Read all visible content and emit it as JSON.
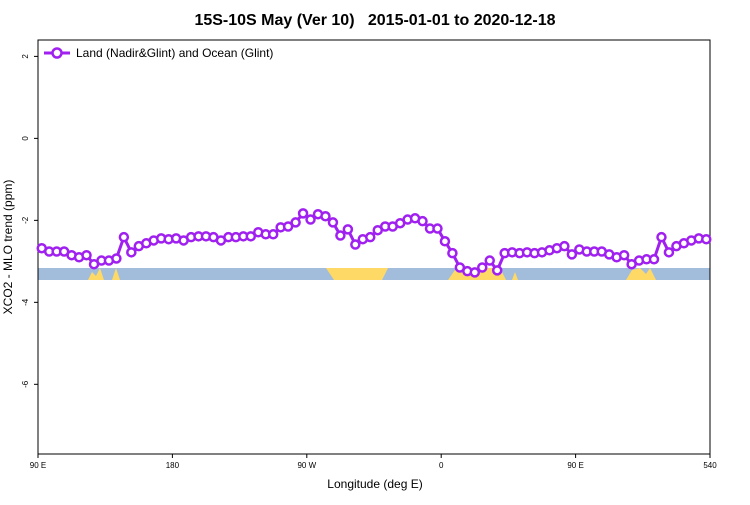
{
  "chart_data": {
    "type": "line",
    "title": "15S-10S May (Ver 10)   2015-01-01 to 2020-12-18",
    "xlabel": "Longitude (deg E)",
    "ylabel": "XCO2 - MLO trend (ppm)",
    "xlim": [
      90,
      540
    ],
    "ylim": [
      -7.7,
      2.4
    ],
    "xticks": [
      {
        "value": 90,
        "label": "90 E"
      },
      180,
      {
        "value": 270,
        "label": "90 W"
      },
      {
        "value": 360,
        "label": "0"
      },
      {
        "value": 450,
        "label": "90 E"
      },
      540
    ],
    "yticks": [
      2,
      0,
      -2,
      -4,
      -6
    ],
    "legend": "top-left",
    "x": [
      92.5,
      97.5,
      102.5,
      107.5,
      112.5,
      117.5,
      122.5,
      127.5,
      132.5,
      137.5,
      142.5,
      147.5,
      152.5,
      157.5,
      162.5,
      167.5,
      172.5,
      177.5,
      182.5,
      187.5,
      192.5,
      197.5,
      202.5,
      207.5,
      212.5,
      217.5,
      222.5,
      227.5,
      232.5,
      237.5,
      242.5,
      247.5,
      252.5,
      257.5,
      262.5,
      267.5,
      272.5,
      277.5,
      282.5,
      287.5,
      292.5,
      297.5,
      302.5,
      307.5,
      312.5,
      317.5,
      322.5,
      327.5,
      332.5,
      337.5,
      342.5,
      347.5,
      352.5,
      357.5,
      362.5,
      367.5,
      372.5,
      377.5,
      382.5,
      387.5,
      392.5,
      397.5,
      402.5,
      407.5,
      412.5,
      417.5,
      422.5,
      427.5,
      432.5,
      437.5,
      442.5,
      447.5,
      452.5,
      457.5,
      462.5,
      467.5,
      472.5,
      477.5,
      482.5,
      487.5,
      492.5,
      497.5,
      502.5,
      507.5,
      512.5,
      517.5,
      522.5,
      527.5,
      532.5,
      537.5
    ],
    "series": [
      {
        "name": "Land (Nadir&Glint) and Ocean (Glint)",
        "color": "#a020f0",
        "values": [
          -2.68,
          -2.76,
          -2.76,
          -2.76,
          -2.85,
          -2.9,
          -2.85,
          -3.07,
          -2.98,
          -2.98,
          -2.93,
          -2.41,
          -2.78,
          -2.63,
          -2.56,
          -2.49,
          -2.44,
          -2.46,
          -2.44,
          -2.49,
          -2.41,
          -2.39,
          -2.39,
          -2.41,
          -2.49,
          -2.41,
          -2.41,
          -2.39,
          -2.39,
          -2.29,
          -2.34,
          -2.34,
          -2.17,
          -2.15,
          -2.05,
          -1.83,
          -1.98,
          -1.85,
          -1.9,
          -2.05,
          -2.37,
          -2.22,
          -2.59,
          -2.46,
          -2.41,
          -2.24,
          -2.15,
          -2.15,
          -2.07,
          -1.98,
          -1.95,
          -2.02,
          -2.2,
          -2.2,
          -2.51,
          -2.8,
          -3.15,
          -3.24,
          -3.27,
          -3.15,
          -2.98,
          -3.22,
          -2.8,
          -2.78,
          -2.8,
          -2.78,
          -2.8,
          -2.78,
          -2.73,
          -2.68,
          -2.63,
          -2.83,
          -2.71,
          -2.76,
          -2.76,
          -2.76,
          -2.83,
          -2.9,
          -2.85,
          -3.07,
          -2.98,
          -2.95,
          -2.95,
          -2.41,
          -2.78,
          -2.63,
          -2.56,
          -2.49,
          -2.44,
          -2.46
        ]
      }
    ]
  }
}
